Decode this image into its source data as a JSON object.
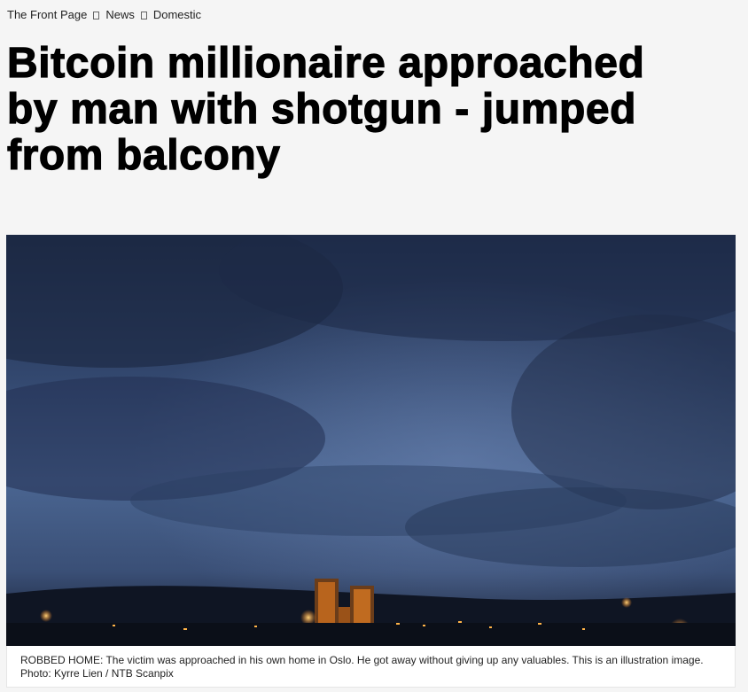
{
  "breadcrumb": {
    "items": [
      "The Front Page",
      "News",
      "Domestic"
    ]
  },
  "article": {
    "headline": "Bitcoin millionaire approached by man with shotgun - jumped from balcony",
    "image": {
      "description": "Dusky cloudy sky over Oslo with lit city hall towers"
    },
    "caption": "ROBBED HOME: The victim was approached in his own home in Oslo. He got away without giving up any valuables. This is an illustration image. Photo: Kyrre Lien / NTB Scanpix"
  },
  "colors": {
    "page_background": "#f5f5f5",
    "sky_top": "#27385c",
    "sky_mid": "#46618e",
    "city_lights": "#ff9a2e"
  }
}
